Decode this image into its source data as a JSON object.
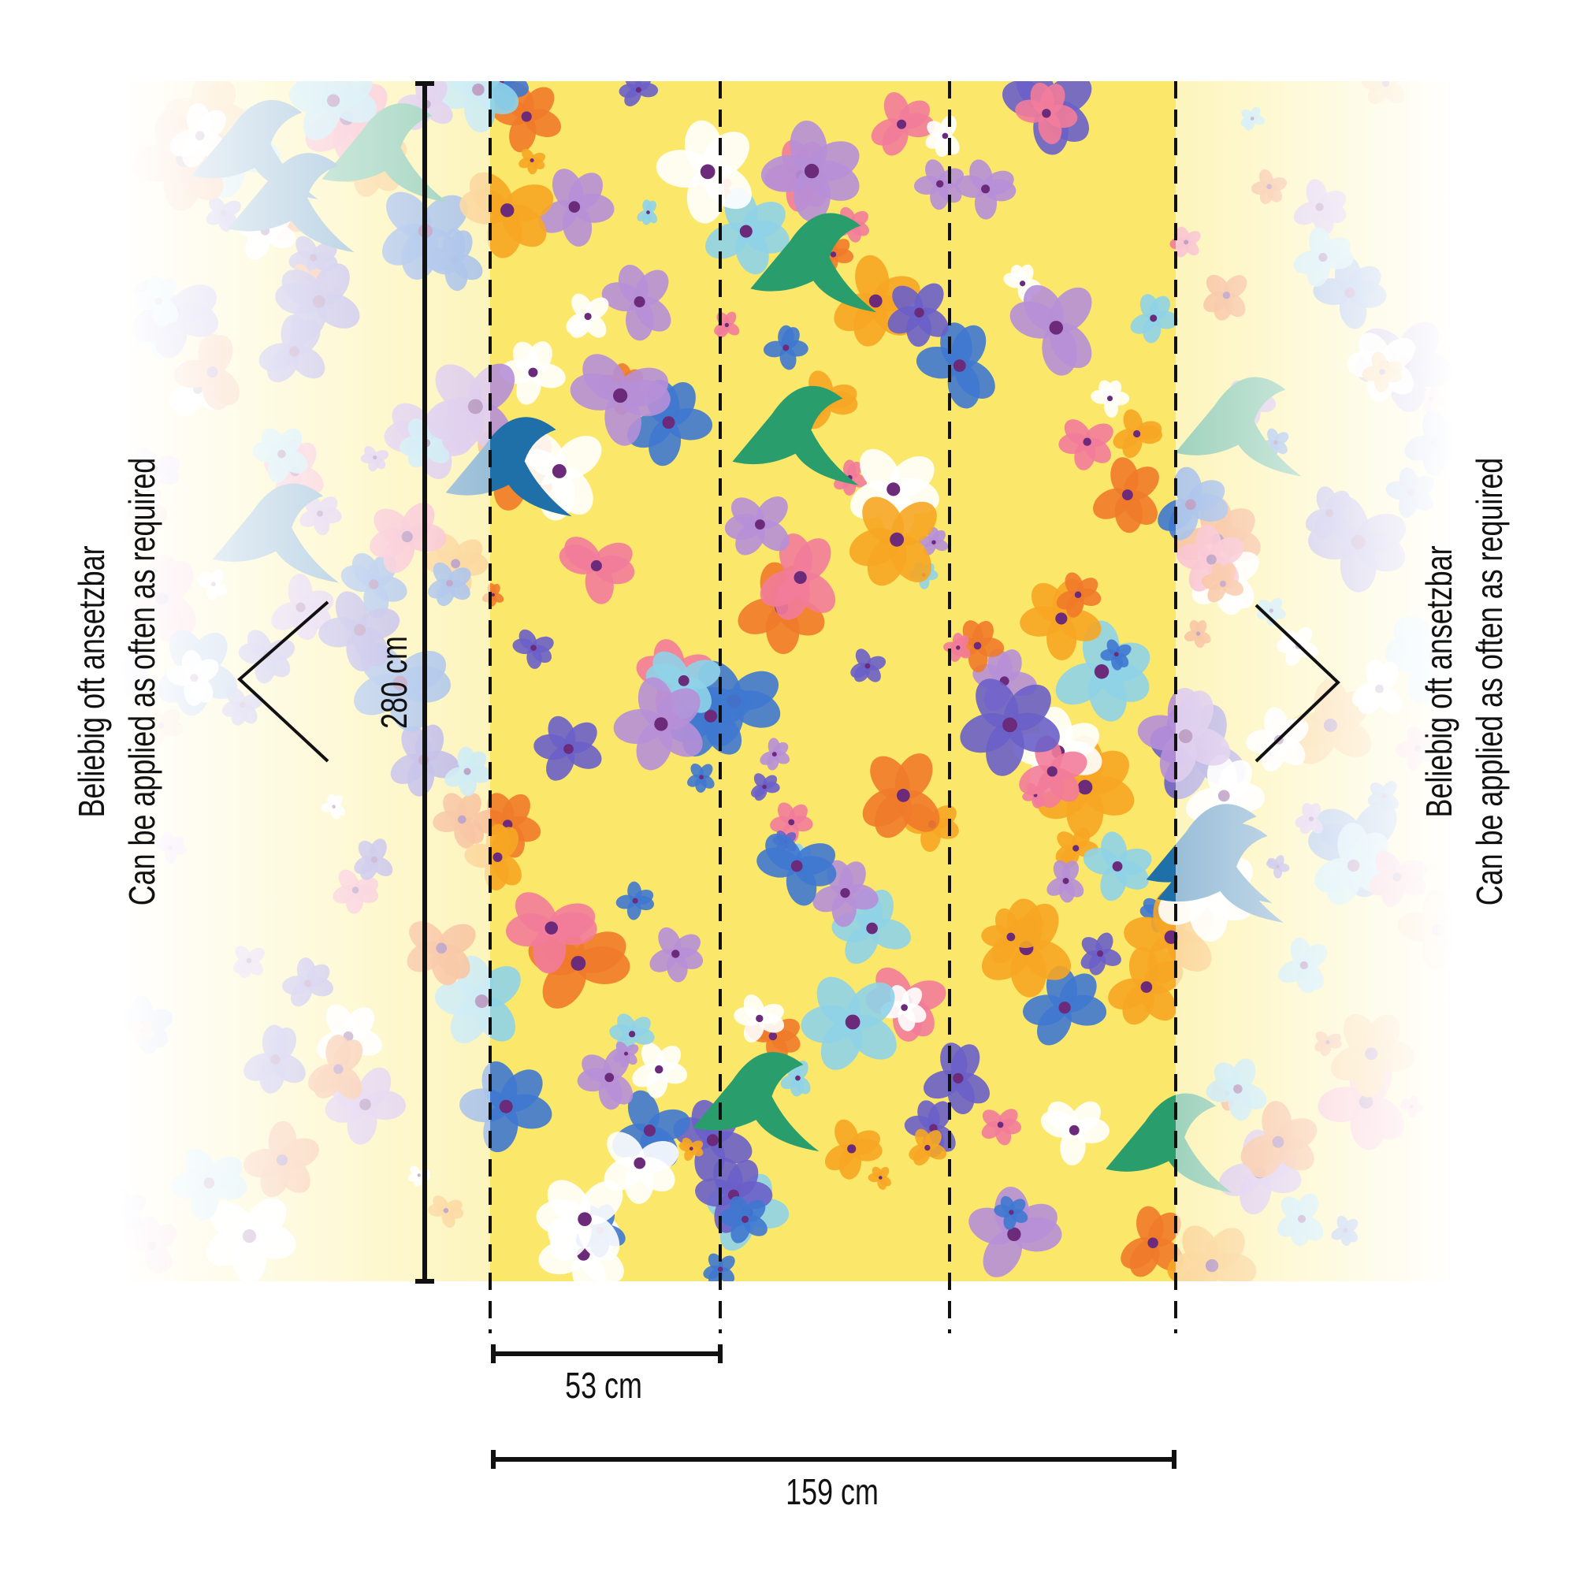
{
  "dimensions": {
    "height_label": "280 cm",
    "strip_width_label": "53 cm",
    "total_width_label": "159 cm",
    "strip_count": 3
  },
  "repeat_note": {
    "german": "Beliebig oft ansetzbar",
    "english": "Can be applied as often as required"
  },
  "colors": {
    "background_yellow": "#fbe86a",
    "line": "#111111"
  }
}
